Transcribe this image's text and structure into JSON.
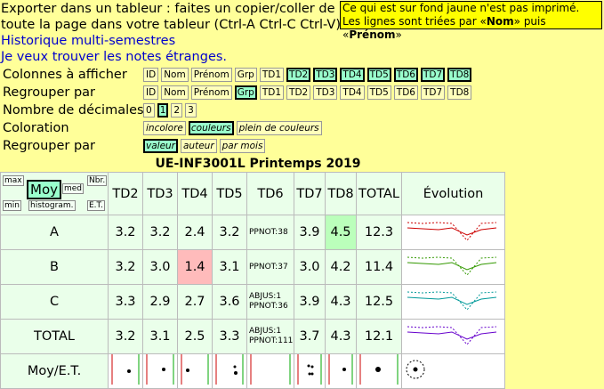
{
  "export": {
    "line1": "Exporter dans un tableur : faites un copier/coller de",
    "line2": "toute la page dans votre tableur (Ctrl-A Ctrl-C Ctrl-V)",
    "link1": "Historique multi-semestres",
    "link2": "Je veux trouver les notes étranges."
  },
  "note": {
    "line1": "Ce qui est sur fond jaune n'est pas imprimé.",
    "line2_a": "Les lignes sont triées par «",
    "line2_b": "Nom",
    "line2_c": "» puis «",
    "line2_d": "Prénom",
    "line2_e": "»"
  },
  "options": {
    "colonnes": {
      "label": "Colonnes à afficher",
      "items": [
        "ID",
        "Nom",
        "Prénom",
        "Grp",
        "TD1",
        "TD2",
        "TD3",
        "TD4",
        "TD5",
        "TD6",
        "TD7",
        "TD8"
      ],
      "active": [
        false,
        false,
        false,
        false,
        false,
        true,
        true,
        true,
        true,
        true,
        true,
        true
      ]
    },
    "regrouper": {
      "label": "Regrouper par",
      "items": [
        "ID",
        "Nom",
        "Prénom",
        "Grp",
        "TD1",
        "TD2",
        "TD3",
        "TD4",
        "TD5",
        "TD6",
        "TD7",
        "TD8"
      ],
      "active": [
        false,
        false,
        false,
        true,
        false,
        false,
        false,
        false,
        false,
        false,
        false,
        false
      ]
    },
    "decimales": {
      "label": "Nombre de décimales",
      "items": [
        "0",
        "1",
        "2",
        "3"
      ],
      "active": [
        false,
        true,
        false,
        false
      ]
    },
    "coloration": {
      "label": "Coloration",
      "items": [
        "incolore",
        "couleurs",
        "plein de couleurs"
      ],
      "active": [
        false,
        true,
        false
      ]
    },
    "regrouper2": {
      "label": "Regrouper par",
      "items": [
        "valeur",
        "auteur",
        "par mois"
      ],
      "active": [
        true,
        false,
        false
      ]
    }
  },
  "title": "UE-INF3001L Printemps 2019",
  "controls": {
    "max": "max",
    "moy": "Moy",
    "med": "med",
    "nbr": "Nbr.",
    "min": "min",
    "histo": "histogram.",
    "et": "E.T."
  },
  "columns": [
    "TD2",
    "TD3",
    "TD4",
    "TD5",
    "TD6",
    "TD7",
    "TD8",
    "TOTAL",
    "Évolution"
  ],
  "rows": [
    {
      "name": "A",
      "cells": [
        "3.2",
        "3.2",
        "2.4",
        "3.2",
        "PPNOT:38",
        "3.9",
        "4.5",
        "12.3"
      ]
    },
    {
      "name": "B",
      "cells": [
        "3.2",
        "3.0",
        "1.4",
        "3.1",
        "PPNOT:37",
        "3.0",
        "4.2",
        "11.4"
      ]
    },
    {
      "name": "C",
      "cells": [
        "3.3",
        "2.9",
        "2.7",
        "3.6",
        "ABJUS:1\nPPNOT:36",
        "3.9",
        "4.3",
        "12.5"
      ]
    },
    {
      "name": "TOTAL",
      "cells": [
        "3.2",
        "3.1",
        "2.5",
        "3.3",
        "ABJUS:1\nPPNOT:111",
        "3.7",
        "4.3",
        "12.1"
      ]
    }
  ],
  "footer_label": "Moy/E.T.",
  "colors": {
    "A": "#cc0000",
    "B": "#339900",
    "C": "#009999",
    "TOTAL": "#6600cc"
  }
}
